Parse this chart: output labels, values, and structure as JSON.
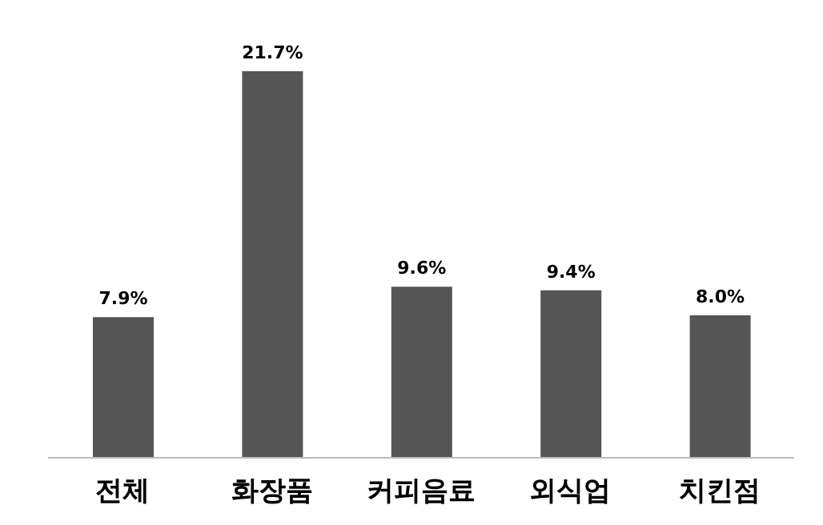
{
  "chart_data": {
    "type": "bar",
    "categories": [
      "전체",
      "화장품",
      "커피음료",
      "외식업",
      "치킨점"
    ],
    "values": [
      7.9,
      21.7,
      9.6,
      9.4,
      8.0
    ],
    "value_labels": [
      "7.9%",
      "21.7%",
      "9.6%",
      "9.4%",
      "8.0%"
    ],
    "color": "#555555",
    "grid": false,
    "legend": false
  }
}
